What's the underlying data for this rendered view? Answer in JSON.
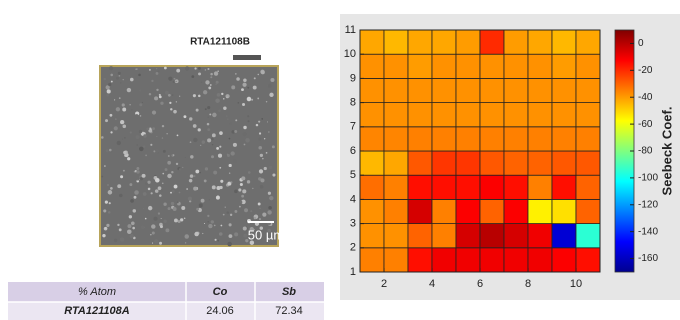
{
  "sem": {
    "title": "RTA121108B",
    "scale_label": "50 µm"
  },
  "table": {
    "header": [
      "% Atom",
      "Co",
      "Sb"
    ],
    "rows": [
      [
        "RTA121108A",
        "24.06",
        "72.34"
      ]
    ]
  },
  "chart_data": {
    "type": "heatmap",
    "xlim": [
      1,
      11
    ],
    "ylim": [
      1,
      11
    ],
    "xticks": [
      2,
      4,
      6,
      8,
      10
    ],
    "yticks": [
      1,
      2,
      3,
      4,
      5,
      6,
      7,
      8,
      9,
      10,
      11
    ],
    "values": [
      [
        -35,
        -35,
        -15,
        -10,
        -10,
        -10,
        -10,
        -10,
        -12,
        -15
      ],
      [
        -38,
        -38,
        -30,
        -35,
        -5,
        0,
        -5,
        -10,
        -155,
        -95
      ],
      [
        -38,
        -35,
        -5,
        -35,
        -12,
        -30,
        -12,
        -55,
        -52,
        -30
      ],
      [
        -32,
        -35,
        -15,
        -15,
        -15,
        -12,
        -15,
        -35,
        -15,
        -30
      ],
      [
        -45,
        -42,
        -28,
        -22,
        -22,
        -28,
        -30,
        -30,
        -28,
        -28
      ],
      [
        -36,
        -36,
        -35,
        -35,
        -35,
        -35,
        -35,
        -35,
        -35,
        -35
      ],
      [
        -38,
        -38,
        -38,
        -38,
        -38,
        -38,
        -38,
        -38,
        -38,
        -38
      ],
      [
        -38,
        -38,
        -38,
        -38,
        -38,
        -38,
        -38,
        -38,
        -38,
        -38
      ],
      [
        -38,
        -38,
        -40,
        -38,
        -38,
        -38,
        -38,
        -38,
        -40,
        -38
      ],
      [
        -42,
        -45,
        -42,
        -42,
        -40,
        -20,
        -40,
        -42,
        -45,
        -42
      ]
    ],
    "clim": [
      -170,
      10
    ],
    "colormap": "jet",
    "colorbar_label": "Seebeck Coef.",
    "colorbar_ticks": [
      0,
      -20,
      -40,
      -60,
      -80,
      -100,
      -120,
      -140,
      -160
    ]
  }
}
